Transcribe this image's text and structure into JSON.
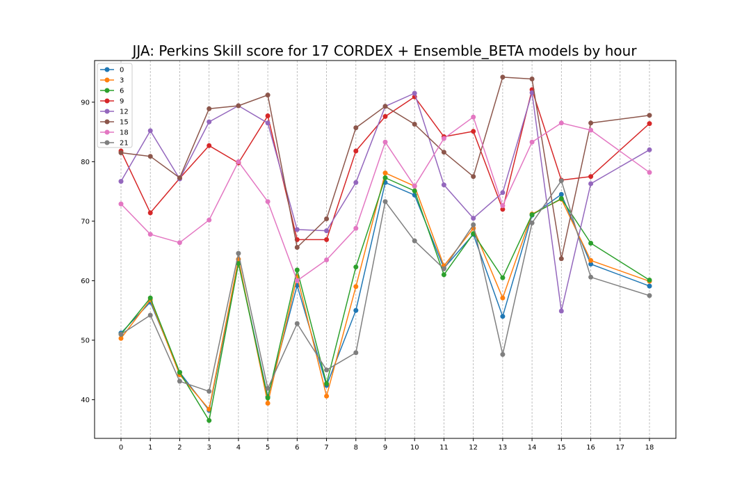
{
  "chart_data": {
    "type": "line",
    "title": "JJA: Perkins Skill score for 17 CORDEX + Ensemble_BETA models by hour",
    "xlabel": "",
    "ylabel": "",
    "x": [
      0,
      1,
      2,
      3,
      4,
      5,
      6,
      7,
      8,
      9,
      10,
      11,
      12,
      13,
      14,
      15,
      16,
      17,
      18
    ],
    "x_tick_labels": [
      "0",
      "1",
      "2",
      "3",
      "4",
      "5",
      "6",
      "7",
      "8",
      "9",
      "10",
      "11",
      "12",
      "13",
      "14",
      "15",
      "16",
      "17",
      "18"
    ],
    "y_ticks": [
      40,
      50,
      60,
      70,
      80,
      90
    ],
    "xlim": [
      -0.9,
      18.9
    ],
    "ylim": [
      33.5,
      97.0
    ],
    "grid": "x-only, dashed",
    "legend_position": "top-left",
    "series": [
      {
        "name": "0",
        "color": "#1f77b4",
        "values": [
          51.2,
          56.4,
          44.6,
          38.2,
          63.1,
          40.5,
          59.2,
          42.4,
          55.0,
          76.5,
          74.4,
          62.1,
          67.8,
          54.0,
          71.0,
          74.5,
          62.8,
          null,
          59.1
        ]
      },
      {
        "name": "3",
        "color": "#ff7f0e",
        "values": [
          50.3,
          56.8,
          44.2,
          38.4,
          63.6,
          39.4,
          60.7,
          40.6,
          59.0,
          78.1,
          75.9,
          62.5,
          68.8,
          57.1,
          71.2,
          73.7,
          63.4,
          null,
          59.9
        ]
      },
      {
        "name": "6",
        "color": "#2ca02c",
        "values": [
          51.0,
          57.1,
          44.6,
          36.5,
          62.9,
          40.3,
          61.8,
          42.7,
          62.3,
          77.3,
          75.1,
          61.0,
          67.9,
          60.5,
          71.1,
          73.8,
          66.3,
          null,
          60.1
        ]
      },
      {
        "name": "9",
        "color": "#d62728",
        "values": [
          81.8,
          71.4,
          77.2,
          82.7,
          79.8,
          87.7,
          66.9,
          66.9,
          81.8,
          87.6,
          90.9,
          84.2,
          85.1,
          72.0,
          92.1,
          76.9,
          77.5,
          null,
          86.4
        ]
      },
      {
        "name": "12",
        "color": "#9467bd",
        "values": [
          76.7,
          85.2,
          77.1,
          86.7,
          89.4,
          86.5,
          68.6,
          68.4,
          76.5,
          89.3,
          91.5,
          76.1,
          70.5,
          74.8,
          91.6,
          54.9,
          76.3,
          null,
          82.0
        ]
      },
      {
        "name": "15",
        "color": "#8c564b",
        "values": [
          81.5,
          80.9,
          77.3,
          88.9,
          89.4,
          91.2,
          65.6,
          70.4,
          85.7,
          89.3,
          86.3,
          81.6,
          77.5,
          94.2,
          93.9,
          63.7,
          86.5,
          null,
          87.8
        ]
      },
      {
        "name": "18",
        "color": "#e377c2",
        "values": [
          72.9,
          67.8,
          66.4,
          70.2,
          80.0,
          73.3,
          60.0,
          63.5,
          68.8,
          83.3,
          75.9,
          83.9,
          87.5,
          72.6,
          83.3,
          86.5,
          85.3,
          null,
          78.2
        ]
      },
      {
        "name": "21",
        "color": "#7f7f7f",
        "values": [
          51.0,
          54.2,
          43.1,
          41.4,
          64.6,
          41.9,
          52.8,
          45.0,
          47.9,
          73.3,
          66.7,
          62.0,
          69.4,
          47.6,
          69.7,
          76.8,
          60.6,
          null,
          57.5
        ]
      }
    ]
  }
}
